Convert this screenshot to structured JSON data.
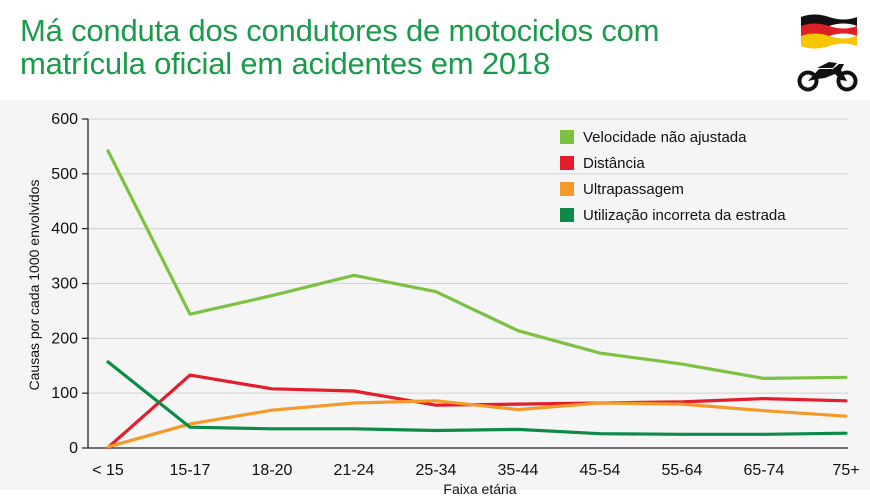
{
  "title": "Má conduta dos condutores de motociclos com matrícula oficial em acidentes em 2018",
  "icons": {
    "flag": "germany-flag-icon",
    "vehicle": "motorcycle-icon"
  },
  "colors": {
    "title": "#1a9a4a",
    "series": [
      "#7cc142",
      "#e31d2b",
      "#f49a2b",
      "#0d8a46"
    ]
  },
  "chart_data": {
    "type": "line",
    "title": "Má conduta dos condutores de motociclos com matrícula oficial em acidentes em 2018",
    "xlabel": "Faixa etária",
    "ylabel": "Causas por cada 1000 envolvidos",
    "categories": [
      "< 15",
      "15-17",
      "18-20",
      "21-24",
      "25-34",
      "35-44",
      "45-54",
      "55-64",
      "65-74",
      "75+"
    ],
    "ylim": [
      0,
      600
    ],
    "yticks": [
      0,
      100,
      200,
      300,
      400,
      500,
      600
    ],
    "grid": true,
    "legend_position": "top-right",
    "series": [
      {
        "name": "Velocidade não ajustada",
        "color": "#7cc142",
        "values": [
          542,
          244,
          278,
          315,
          285,
          214,
          173,
          153,
          127,
          129
        ]
      },
      {
        "name": "Distância",
        "color": "#e31d2b",
        "values": [
          1,
          133,
          108,
          104,
          78,
          80,
          82,
          84,
          90,
          86
        ]
      },
      {
        "name": "Ultrapassagem",
        "color": "#f49a2b",
        "values": [
          2,
          44,
          69,
          82,
          86,
          70,
          82,
          80,
          68,
          58
        ]
      },
      {
        "name": "Utilização incorreta da estrada",
        "color": "#0d8a46",
        "values": [
          157,
          38,
          35,
          35,
          32,
          34,
          26,
          25,
          25,
          27
        ]
      }
    ]
  }
}
